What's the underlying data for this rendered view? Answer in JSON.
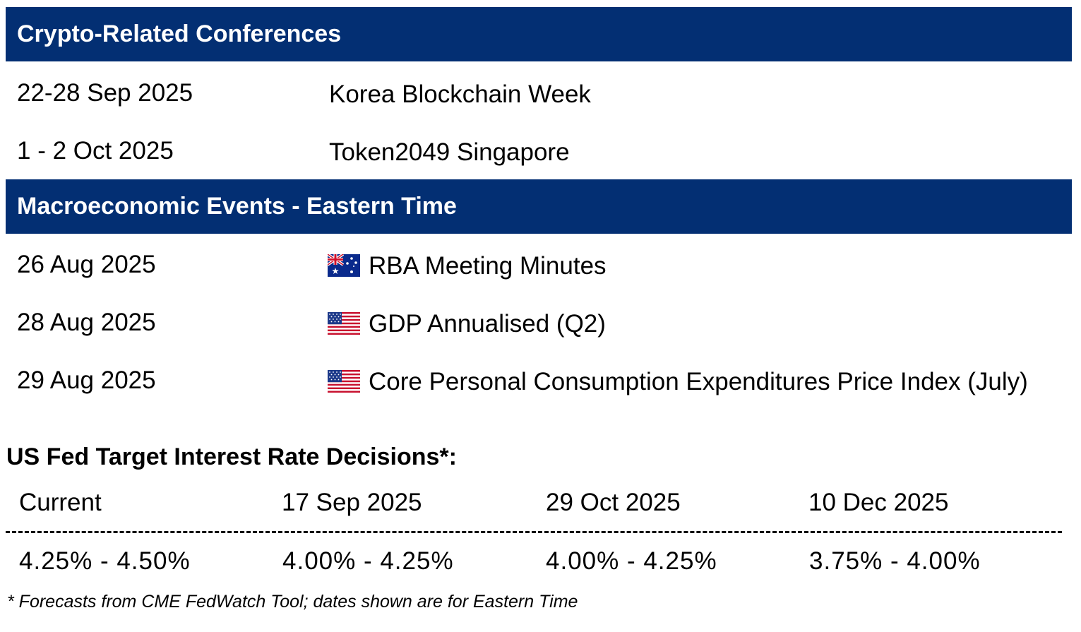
{
  "conferences": {
    "title": "Crypto-Related Conferences",
    "rows": [
      {
        "date": "22-28 Sep 2025",
        "event": "Korea Blockchain Week"
      },
      {
        "date": "1 - 2 Oct 2025",
        "event": "Token2049 Singapore"
      }
    ]
  },
  "macro": {
    "title": "Macroeconomic Events - Eastern Time",
    "rows": [
      {
        "date": "26 Aug 2025",
        "flag": "australia-flag-icon",
        "event": "RBA Meeting Minutes"
      },
      {
        "date": "28 Aug 2025",
        "flag": "us-flag-icon",
        "event": "GDP Annualised (Q2)"
      },
      {
        "date": "29 Aug 2025",
        "flag": "us-flag-icon",
        "event": "Core Personal Consumption Expenditures Price Index (July)"
      }
    ]
  },
  "fed": {
    "title": "US Fed Target Interest Rate Decisions*:",
    "columns": [
      {
        "label": "Current",
        "value": "4.25% - 4.50%"
      },
      {
        "label": "17 Sep 2025",
        "value": "4.00% - 4.25%"
      },
      {
        "label": "29 Oct 2025",
        "value": "4.00% - 4.25%"
      },
      {
        "label": "10 Dec 2025",
        "value": "3.75% - 4.00%"
      }
    ],
    "footnote": "* Forecasts from CME FedWatch Tool; dates shown are for Eastern Time"
  },
  "colors": {
    "banner": "#032f73",
    "banner_text": "#ffffff",
    "text": "#000000"
  }
}
